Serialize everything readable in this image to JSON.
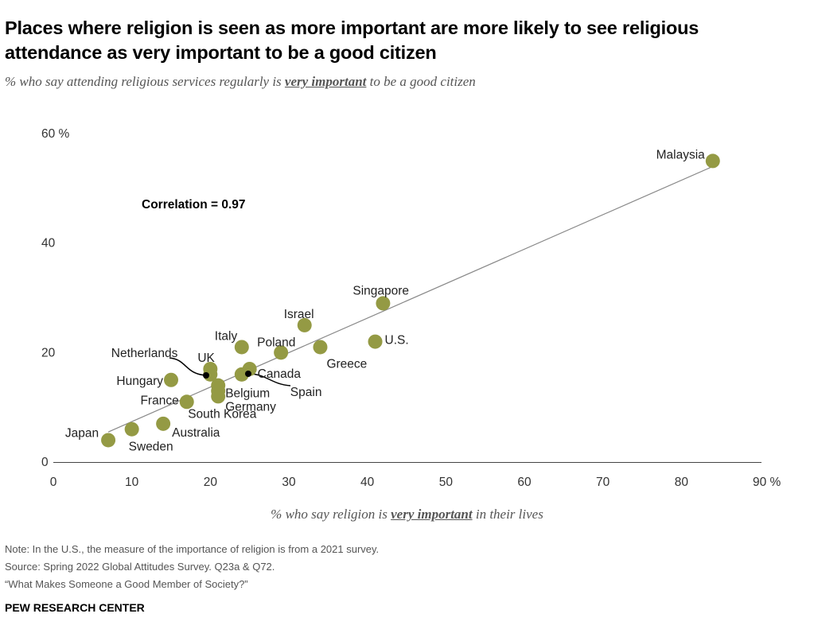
{
  "title": "Places where religion is seen as more important are more likely to see religious attendance as very important to be a good citizen",
  "subtitle": {
    "pre": "% who say attending religious services regularly is ",
    "em": "very important",
    "post": " to be a good citizen"
  },
  "xlabel": {
    "pre": "% who say religion is ",
    "em": "very important",
    "post": " in their lives"
  },
  "notes": [
    "Note: In the U.S., the measure of the importance of religion is from a 2021 survey.",
    "Source: Spring 2022 Global Attitudes Survey. Q23a & Q72.",
    "“What Makes Someone a Good Member of Society?”"
  ],
  "brand": "PEW RESEARCH CENTER",
  "chart_data": {
    "type": "scatter",
    "annotation": "Correlation = 0.97",
    "xlim": [
      0,
      90
    ],
    "ylim": [
      0,
      60
    ],
    "xticks": [
      "0",
      "10",
      "20",
      "30",
      "40",
      "50",
      "60",
      "70",
      "80",
      "90 %"
    ],
    "xtick_values": [
      0,
      10,
      20,
      30,
      40,
      50,
      60,
      70,
      80,
      90
    ],
    "yticks": [
      "0",
      "20",
      "40",
      "60 %"
    ],
    "ytick_values": [
      0,
      20,
      40,
      60
    ],
    "color": "#949a44",
    "trendline": [
      [
        7,
        5.5
      ],
      [
        84,
        54
      ]
    ],
    "points": [
      {
        "label": "Malaysia",
        "x": 84,
        "y": 55
      },
      {
        "label": "Singapore",
        "x": 42,
        "y": 29
      },
      {
        "label": "U.S.",
        "x": 41,
        "y": 22
      },
      {
        "label": "Israel",
        "x": 32,
        "y": 25
      },
      {
        "label": "Greece",
        "x": 34,
        "y": 21
      },
      {
        "label": "Poland",
        "x": 29,
        "y": 20
      },
      {
        "label": "Italy",
        "x": 24,
        "y": 21
      },
      {
        "label": "Canada",
        "x": 25,
        "y": 17
      },
      {
        "label": "Spain",
        "x": 24,
        "y": 16
      },
      {
        "label": "UK",
        "x": 20,
        "y": 17
      },
      {
        "label": "Netherlands",
        "x": 20,
        "y": 16
      },
      {
        "label": "Hungary",
        "x": 15,
        "y": 15
      },
      {
        "label": "Belgium",
        "x": 21,
        "y": 14
      },
      {
        "label": "South Korea",
        "x": 21,
        "y": 13
      },
      {
        "label": "Germany",
        "x": 21,
        "y": 12
      },
      {
        "label": "France",
        "x": 17,
        "y": 11
      },
      {
        "label": "Australia",
        "x": 14,
        "y": 7
      },
      {
        "label": "Sweden",
        "x": 10,
        "y": 6
      },
      {
        "label": "Japan",
        "x": 7,
        "y": 4
      }
    ]
  }
}
